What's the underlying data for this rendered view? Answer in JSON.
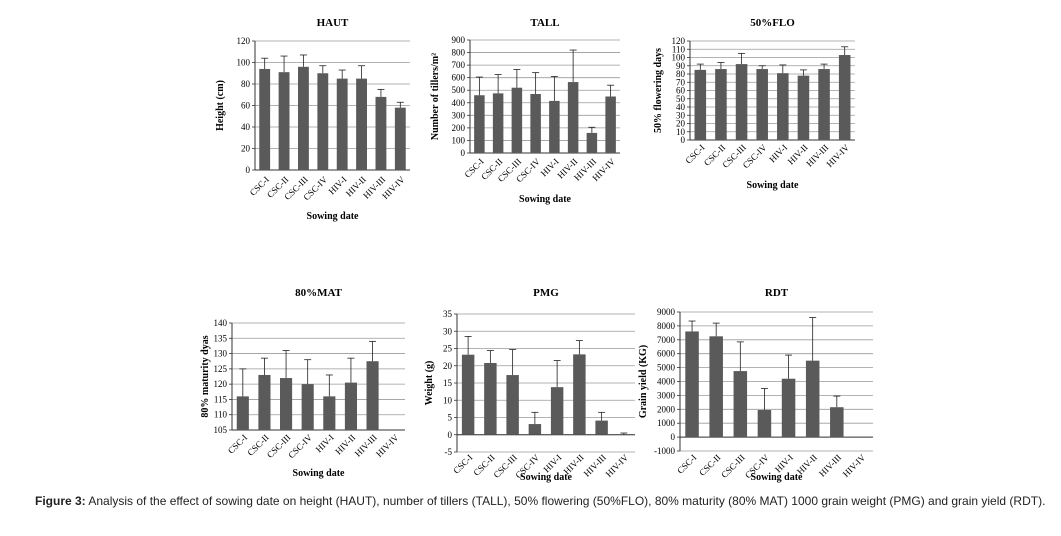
{
  "caption": {
    "label": "Figure 3:",
    "text": " Analysis of the effect of sowing date on height (HAUT), number of tillers (TALL), 50% flowering (50%FLO), 80% maturity (80% MAT) 1000 grain weight (PMG) and grain yield (RDT)."
  },
  "colors": {
    "bar": "#5a5a5a",
    "grid": "#9a9a9a",
    "axis": "#333333"
  },
  "chart_data": [
    {
      "type": "bar",
      "title": "HAUT",
      "xlabel": "Sowing date",
      "ylabel": "Height (cm)",
      "ylim": [
        0,
        120
      ],
      "yticks": [
        0,
        20,
        40,
        60,
        80,
        100,
        120
      ],
      "grid": true,
      "categories": [
        "CSC-I",
        "CSC-II",
        "CSC-III",
        "CSC-IV",
        "HIV-I",
        "HIV-II",
        "HIV-III",
        "HIV-IV"
      ],
      "values": [
        94,
        91,
        96,
        90,
        85,
        85,
        68,
        58
      ],
      "errors": [
        10,
        15,
        11,
        7,
        8,
        12,
        7,
        5
      ]
    },
    {
      "type": "bar",
      "title": "TALL",
      "xlabel": "Sowing date",
      "ylabel": "Number of tillers/m²",
      "ylim": [
        0,
        900
      ],
      "yticks": [
        0,
        100,
        200,
        300,
        400,
        500,
        600,
        700,
        800,
        900
      ],
      "grid": true,
      "categories": [
        "CSC-I",
        "CSC-II",
        "CSC-III",
        "CSC-IV",
        "HIV-I",
        "HIV-II",
        "HIV-III",
        "HIV-IV"
      ],
      "values": [
        460,
        475,
        520,
        470,
        415,
        565,
        160,
        450
      ],
      "errors": [
        145,
        150,
        145,
        170,
        195,
        255,
        45,
        90
      ]
    },
    {
      "type": "bar",
      "title": "50%FLO",
      "xlabel": "Sowing date",
      "ylabel": "50% flowering days",
      "ylim": [
        0,
        120
      ],
      "yticks": [
        0,
        10,
        20,
        30,
        40,
        50,
        60,
        70,
        80,
        90,
        100,
        110,
        120
      ],
      "grid": true,
      "categories": [
        "CSC-I",
        "CSC-II",
        "CSC-III",
        "CSC-IV",
        "HIV-I",
        "HIV-II",
        "HIV-III",
        "HIV-IV"
      ],
      "values": [
        85,
        86,
        92,
        86,
        81,
        78,
        86,
        103
      ],
      "errors": [
        7,
        8,
        13,
        4,
        10,
        7,
        6,
        10
      ]
    },
    {
      "type": "bar",
      "title": "80%MAT",
      "xlabel": "Sowing date",
      "ylabel": "80% maturity dyas",
      "ylim": [
        105,
        140
      ],
      "yticks": [
        105,
        110,
        115,
        120,
        125,
        130,
        135,
        140
      ],
      "grid": true,
      "categories": [
        "CSC-I",
        "CSC-II",
        "CSC-III",
        "CSC-IV",
        "HIV-I",
        "HIV-II",
        "HIV-III",
        "HIV-IV"
      ],
      "values": [
        116,
        123,
        122,
        120,
        116,
        120.5,
        127.5,
        null
      ],
      "errors": [
        9,
        5.5,
        9,
        8,
        7,
        8,
        6.5,
        null
      ]
    },
    {
      "type": "bar",
      "title": "PMG",
      "xlabel": "Sowing date",
      "ylabel": "Weight (g)",
      "ylim": [
        -5,
        35
      ],
      "yticks": [
        -5,
        0,
        5,
        10,
        15,
        20,
        25,
        30,
        35
      ],
      "grid": true,
      "categories": [
        "CSC-I",
        "CSC-II",
        "CSC-III",
        "CSC-IV",
        "HIV-I",
        "HIV-II",
        "HIV-III",
        "HIV-IV"
      ],
      "values": [
        23.2,
        20.8,
        17.3,
        3.1,
        13.8,
        23.3,
        4.1,
        0
      ],
      "errors": [
        5.3,
        3.6,
        7.4,
        3.4,
        7.7,
        4.0,
        2.4,
        0.5
      ]
    },
    {
      "type": "bar",
      "title": "RDT",
      "xlabel": "Sowing date",
      "ylabel": "Grain yield (KG)",
      "ylim": [
        -1000,
        9000
      ],
      "yticks": [
        -1000,
        0,
        1000,
        2000,
        3000,
        4000,
        5000,
        6000,
        7000,
        8000,
        9000
      ],
      "grid": true,
      "categories": [
        "CSC-I",
        "CSC-II",
        "CSC-III",
        "CSC-IV",
        "HIV-I",
        "HIV-II",
        "HIV-III",
        "HIV-IV"
      ],
      "values": [
        7600,
        7250,
        4750,
        1950,
        4200,
        5500,
        2150,
        null
      ],
      "errors": [
        750,
        950,
        2100,
        1550,
        1700,
        3100,
        800,
        null
      ]
    }
  ]
}
